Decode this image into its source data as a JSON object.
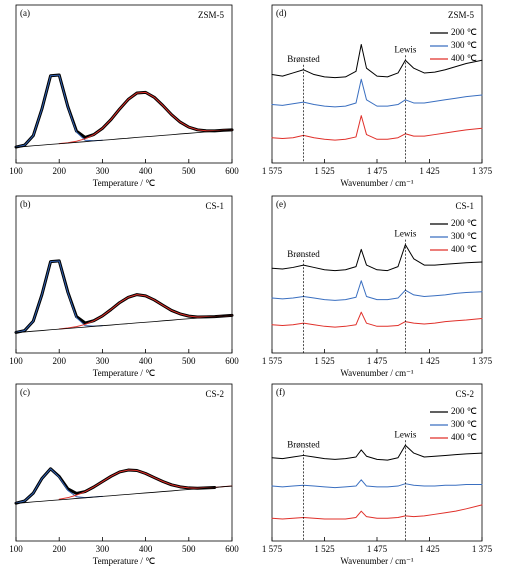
{
  "chart_data": [
    {
      "type": "line",
      "panel_label": "(a)",
      "title": "ZSM-5",
      "x_label": "Temperature / ℃",
      "x": [
        100,
        120,
        140,
        160,
        180,
        200,
        220,
        240,
        260,
        280,
        300,
        320,
        340,
        360,
        380,
        400,
        420,
        440,
        460,
        480,
        500,
        520,
        540,
        560,
        580,
        600
      ],
      "xlim": [
        100,
        600
      ],
      "xticks": [
        100,
        200,
        300,
        400,
        500,
        600
      ],
      "ylim": [
        0,
        1
      ],
      "series": [
        {
          "color": "#000000",
          "line_width": 3,
          "values": [
            0.101,
            0.113,
            0.173,
            0.342,
            0.552,
            0.557,
            0.357,
            0.202,
            0.162,
            0.18,
            0.219,
            0.275,
            0.342,
            0.403,
            0.443,
            0.447,
            0.416,
            0.364,
            0.306,
            0.259,
            0.227,
            0.21,
            0.204,
            0.203,
            0.207,
            0.21
          ]
        },
        {
          "color": "#2f5fb0",
          "line_width": 1,
          "values": [
            0.101,
            0.113,
            0.173,
            0.342,
            0.552,
            0.556,
            0.355,
            0.195,
            0.144,
            0.141,
            0.144,
            null,
            null,
            null,
            null,
            null,
            null,
            null,
            null,
            null,
            null,
            null,
            null,
            null,
            null,
            null
          ]
        },
        {
          "color": "#e0302a",
          "line_width": 1,
          "values": [
            null,
            null,
            null,
            null,
            null,
            0.123,
            0.128,
            0.138,
            0.153,
            0.179,
            0.219,
            0.275,
            0.342,
            0.403,
            0.443,
            0.447,
            0.416,
            0.364,
            0.306,
            0.259,
            0.227,
            0.21,
            0.204,
            0.203,
            0.207,
            0.21
          ]
        },
        {
          "color": "#000000",
          "line_width": 0.8,
          "values": [
            0.1,
            0.104,
            0.109,
            0.113,
            0.118,
            0.122,
            0.126,
            0.131,
            0.135,
            0.14,
            0.144,
            0.148,
            0.153,
            0.157,
            0.162,
            0.166,
            0.17,
            0.175,
            0.179,
            0.184,
            0.188,
            0.192,
            0.197,
            0.201,
            0.206,
            0.21
          ]
        }
      ]
    },
    {
      "type": "line",
      "panel_label": "(b)",
      "title": "CS-1",
      "x_label": "Temperature / ℃",
      "x": [
        100,
        120,
        140,
        160,
        180,
        200,
        220,
        240,
        260,
        280,
        300,
        320,
        340,
        360,
        380,
        400,
        420,
        440,
        460,
        480,
        500,
        520,
        540,
        560,
        580,
        600
      ],
      "xlim": [
        100,
        600
      ],
      "xticks": [
        100,
        200,
        300,
        400,
        500,
        600
      ],
      "ylim": [
        0,
        1
      ],
      "series": [
        {
          "color": "#000000",
          "line_width": 3,
          "values": [
            0.131,
            0.143,
            0.203,
            0.372,
            0.582,
            0.587,
            0.388,
            0.232,
            0.191,
            0.206,
            0.236,
            0.277,
            0.321,
            0.355,
            0.372,
            0.364,
            0.338,
            0.304,
            0.271,
            0.249,
            0.235,
            0.229,
            0.23,
            0.232,
            0.236,
            0.24
          ]
        },
        {
          "color": "#2f5fb0",
          "line_width": 1,
          "values": [
            0.131,
            0.143,
            0.203,
            0.372,
            0.582,
            0.586,
            0.385,
            0.225,
            0.174,
            0.171,
            0.174,
            null,
            null,
            null,
            null,
            null,
            null,
            null,
            null,
            null,
            null,
            null,
            null,
            null,
            null,
            null
          ]
        },
        {
          "color": "#e0302a",
          "line_width": 1,
          "values": [
            null,
            null,
            null,
            null,
            null,
            0.153,
            0.159,
            0.168,
            0.182,
            0.205,
            0.236,
            0.277,
            0.321,
            0.355,
            0.372,
            0.364,
            0.338,
            0.304,
            0.271,
            0.249,
            0.235,
            0.229,
            0.23,
            0.232,
            0.236,
            0.24
          ]
        },
        {
          "color": "#000000",
          "line_width": 0.8,
          "values": [
            0.13,
            0.134,
            0.139,
            0.143,
            0.148,
            0.152,
            0.156,
            0.161,
            0.165,
            0.17,
            0.174,
            0.178,
            0.183,
            0.187,
            0.192,
            0.196,
            0.2,
            0.205,
            0.209,
            0.214,
            0.218,
            0.222,
            0.227,
            0.231,
            0.236,
            0.24
          ]
        }
      ]
    },
    {
      "type": "line",
      "panel_label": "(c)",
      "title": "CS-2",
      "x_label": "Temperature / ℃",
      "x": [
        100,
        120,
        140,
        160,
        180,
        200,
        220,
        240,
        260,
        280,
        300,
        320,
        340,
        360,
        380,
        400,
        420,
        440,
        460,
        480,
        500,
        520,
        540,
        560,
        580,
        600
      ],
      "xlim": [
        100,
        600
      ],
      "xticks": [
        100,
        200,
        300,
        400,
        500,
        600
      ],
      "ylim": [
        0,
        1
      ],
      "series": [
        {
          "color": "#000000",
          "line_width": 3,
          "values": [
            0.241,
            0.255,
            0.305,
            0.398,
            0.46,
            0.411,
            0.332,
            0.303,
            0.315,
            0.344,
            0.378,
            0.412,
            0.44,
            0.452,
            0.449,
            0.43,
            0.404,
            0.379,
            0.358,
            0.345,
            0.338,
            0.336,
            0.338,
            0.341,
            null,
            null
          ]
        },
        {
          "color": "#2f5fb0",
          "line_width": 1,
          "values": [
            0.241,
            0.255,
            0.305,
            0.398,
            0.46,
            0.407,
            0.322,
            0.282,
            0.276,
            0.28,
            0.284,
            null,
            null,
            null,
            null,
            null,
            null,
            null,
            null,
            null,
            null,
            null,
            null,
            null,
            null,
            null
          ]
        },
        {
          "color": "#e0302a",
          "line_width": 1,
          "values": [
            null,
            null,
            null,
            null,
            null,
            0.266,
            0.276,
            0.292,
            0.314,
            0.344,
            0.378,
            0.412,
            0.44,
            0.452,
            0.449,
            0.43,
            0.404,
            0.379,
            0.358,
            0.345,
            0.338,
            0.336,
            0.338,
            0.341,
            0.346,
            0.35
          ]
        },
        {
          "color": "#000000",
          "line_width": 0.8,
          "values": [
            0.24,
            0.244,
            0.249,
            0.253,
            0.258,
            0.262,
            0.266,
            0.271,
            0.275,
            0.28,
            0.284,
            0.288,
            0.293,
            0.297,
            0.302,
            0.306,
            0.31,
            0.315,
            0.319,
            0.324,
            0.328,
            0.332,
            0.337,
            0.341,
            0.346,
            0.35
          ]
        }
      ]
    },
    {
      "type": "line",
      "panel_label": "(d)",
      "title": "ZSM-5",
      "x_label": "Wavenumber / cm⁻¹",
      "legend": "upper right",
      "x": [
        1575,
        1565,
        1555,
        1545,
        1535,
        1525,
        1515,
        1505,
        1495,
        1490,
        1485,
        1475,
        1465,
        1455,
        1448,
        1440,
        1430,
        1420,
        1410,
        1400,
        1390,
        1375
      ],
      "xlim": [
        1575,
        1375
      ],
      "xticks": [
        {
          "value": 1575,
          "label": "1 575"
        },
        {
          "value": 1525,
          "label": "1 525"
        },
        {
          "value": 1475,
          "label": "1 475"
        },
        {
          "value": 1425,
          "label": "1 425"
        },
        {
          "value": 1375,
          "label": "1 375"
        }
      ],
      "ylim": [
        0,
        1
      ],
      "annotations": [
        {
          "text": "Brønsted",
          "x": 1545
        },
        {
          "text": "Lewis",
          "x": 1448
        }
      ],
      "series": [
        {
          "name": "200 ℃",
          "color": "#000000",
          "values": [
            0.56,
            0.55,
            0.57,
            0.59,
            0.56,
            0.545,
            0.54,
            0.545,
            0.58,
            0.75,
            0.6,
            0.55,
            0.545,
            0.57,
            0.65,
            0.6,
            0.57,
            0.575,
            0.59,
            0.61,
            0.63,
            0.65
          ]
        },
        {
          "name": "300 ℃",
          "color": "#3a6fc0",
          "values": [
            0.37,
            0.365,
            0.375,
            0.385,
            0.37,
            0.36,
            0.355,
            0.36,
            0.38,
            0.53,
            0.4,
            0.36,
            0.36,
            0.37,
            0.4,
            0.38,
            0.38,
            0.39,
            0.4,
            0.41,
            0.42,
            0.43
          ]
        },
        {
          "name": "400 ℃",
          "color": "#e0302a",
          "values": [
            0.16,
            0.155,
            0.16,
            0.175,
            0.16,
            0.15,
            0.145,
            0.15,
            0.165,
            0.3,
            0.18,
            0.15,
            0.15,
            0.16,
            0.185,
            0.17,
            0.17,
            0.18,
            0.19,
            0.2,
            0.21,
            0.22
          ]
        }
      ]
    },
    {
      "type": "line",
      "panel_label": "(e)",
      "title": "CS-1",
      "x_label": "Wavenumber / cm⁻¹",
      "legend": "upper right",
      "x": [
        1575,
        1565,
        1555,
        1545,
        1535,
        1525,
        1515,
        1505,
        1495,
        1490,
        1485,
        1475,
        1465,
        1455,
        1448,
        1440,
        1430,
        1420,
        1410,
        1400,
        1390,
        1375
      ],
      "xlim": [
        1575,
        1375
      ],
      "xticks": [
        {
          "value": 1575,
          "label": "1 575"
        },
        {
          "value": 1525,
          "label": "1 525"
        },
        {
          "value": 1475,
          "label": "1 475"
        },
        {
          "value": 1425,
          "label": "1 425"
        },
        {
          "value": 1375,
          "label": "1 375"
        }
      ],
      "ylim": [
        0,
        1
      ],
      "annotations": [
        {
          "text": "Brønsted",
          "x": 1545
        },
        {
          "text": "Lewis",
          "x": 1448
        }
      ],
      "series": [
        {
          "name": "200 ℃",
          "color": "#000000",
          "values": [
            0.54,
            0.535,
            0.545,
            0.56,
            0.545,
            0.53,
            0.525,
            0.53,
            0.55,
            0.66,
            0.56,
            0.53,
            0.525,
            0.55,
            0.69,
            0.6,
            0.56,
            0.56,
            0.565,
            0.57,
            0.575,
            0.58
          ]
        },
        {
          "name": "300 ℃",
          "color": "#3a6fc0",
          "values": [
            0.35,
            0.345,
            0.35,
            0.36,
            0.35,
            0.34,
            0.335,
            0.34,
            0.355,
            0.46,
            0.36,
            0.34,
            0.34,
            0.35,
            0.4,
            0.37,
            0.36,
            0.365,
            0.37,
            0.38,
            0.385,
            0.39
          ]
        },
        {
          "name": "400 ℃",
          "color": "#e0302a",
          "values": [
            0.18,
            0.175,
            0.18,
            0.19,
            0.18,
            0.17,
            0.165,
            0.17,
            0.18,
            0.26,
            0.19,
            0.17,
            0.17,
            0.175,
            0.2,
            0.19,
            0.185,
            0.19,
            0.2,
            0.205,
            0.21,
            0.22
          ]
        }
      ]
    },
    {
      "type": "line",
      "panel_label": "(f)",
      "title": "CS-2",
      "x_label": "Wavenumber / cm⁻¹",
      "legend": "upper right",
      "x": [
        1575,
        1565,
        1555,
        1545,
        1535,
        1525,
        1515,
        1505,
        1495,
        1490,
        1485,
        1475,
        1465,
        1455,
        1448,
        1440,
        1430,
        1420,
        1410,
        1400,
        1390,
        1375
      ],
      "xlim": [
        1575,
        1375
      ],
      "xticks": [
        {
          "value": 1575,
          "label": "1 575"
        },
        {
          "value": 1525,
          "label": "1 525"
        },
        {
          "value": 1475,
          "label": "1 475"
        },
        {
          "value": 1425,
          "label": "1 425"
        },
        {
          "value": 1375,
          "label": "1 375"
        }
      ],
      "ylim": [
        0,
        1
      ],
      "annotations": [
        {
          "text": "Brønsted",
          "x": 1545
        },
        {
          "text": "Lewis",
          "x": 1448
        }
      ],
      "series": [
        {
          "name": "200 ℃",
          "color": "#000000",
          "values": [
            0.53,
            0.525,
            0.535,
            0.545,
            0.535,
            0.525,
            0.52,
            0.525,
            0.535,
            0.58,
            0.54,
            0.52,
            0.515,
            0.53,
            0.61,
            0.56,
            0.535,
            0.54,
            0.545,
            0.55,
            0.555,
            0.56
          ]
        },
        {
          "name": "300 ℃",
          "color": "#3a6fc0",
          "values": [
            0.35,
            0.345,
            0.35,
            0.355,
            0.35,
            0.345,
            0.34,
            0.345,
            0.35,
            0.39,
            0.35,
            0.345,
            0.345,
            0.35,
            0.365,
            0.355,
            0.35,
            0.35,
            0.355,
            0.355,
            0.36,
            0.36
          ]
        },
        {
          "name": "400 ℃",
          "color": "#e0302a",
          "values": [
            0.145,
            0.14,
            0.145,
            0.15,
            0.145,
            0.14,
            0.14,
            0.14,
            0.15,
            0.19,
            0.155,
            0.145,
            0.145,
            0.15,
            0.16,
            0.155,
            0.16,
            0.17,
            0.18,
            0.19,
            0.205,
            0.23
          ]
        }
      ]
    }
  ]
}
